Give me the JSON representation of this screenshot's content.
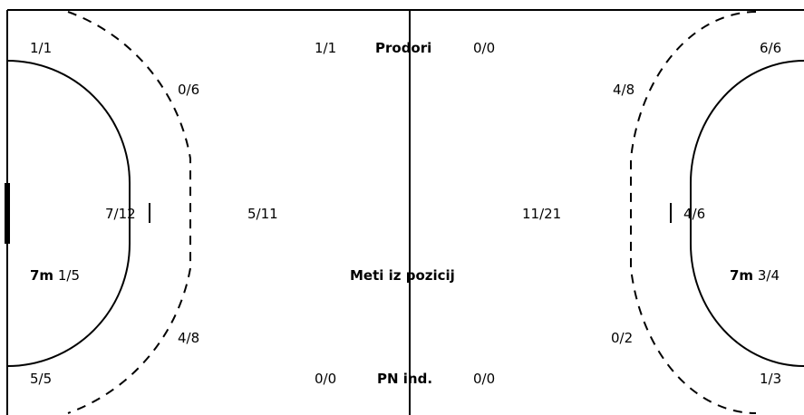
{
  "court": {
    "line_color": "#000000",
    "background": "#ffffff"
  },
  "center": {
    "breakthroughs_label": "Prodori",
    "positional_label": "Meti iz pozicij",
    "fast_break_label": "PN ind."
  },
  "left_side": {
    "corner_top": "1/1",
    "corner_bottom": "5/5",
    "wing_top_9m": "0/6",
    "wing_bottom_9m": "4/8",
    "center_6m": "7/12",
    "center_back": "5/11",
    "breakthroughs": "1/1",
    "fast_break": "0/0",
    "seven_m_label": "7m",
    "seven_m_value": "1/5"
  },
  "right_side": {
    "corner_top": "6/6",
    "corner_bottom": "1/3",
    "wing_top_9m": "4/8",
    "wing_bottom_9m": "0/2",
    "center_6m": "4/6",
    "center_back": "11/21",
    "breakthroughs": "0/0",
    "fast_break": "0/0",
    "seven_m_label": "7m",
    "seven_m_value": "3/4"
  }
}
